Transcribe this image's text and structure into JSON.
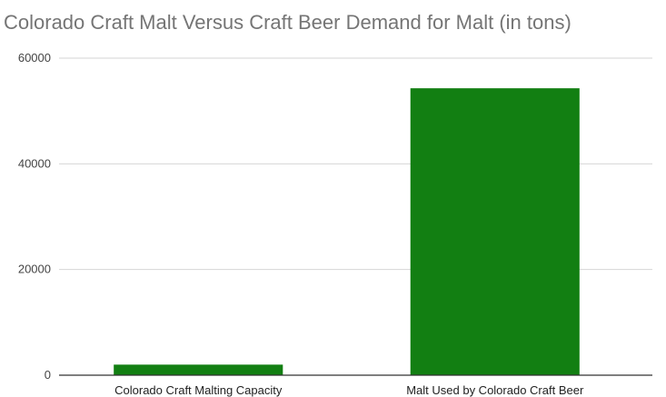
{
  "chart_data": {
    "type": "bar",
    "title": "Colorado Craft Malt Versus Craft Beer Demand for Malt (in tons)",
    "categories": [
      "Colorado Craft Malting Capacity",
      "Malt Used by Colorado Craft Beer"
    ],
    "values": [
      2000,
      54300
    ],
    "xlabel": "",
    "ylabel": "",
    "ylim": [
      0,
      60000
    ],
    "yticks": [
      "0",
      "20000",
      "40000",
      "60000"
    ],
    "grid": true,
    "legend": "none",
    "bar_color": "#127f12"
  }
}
